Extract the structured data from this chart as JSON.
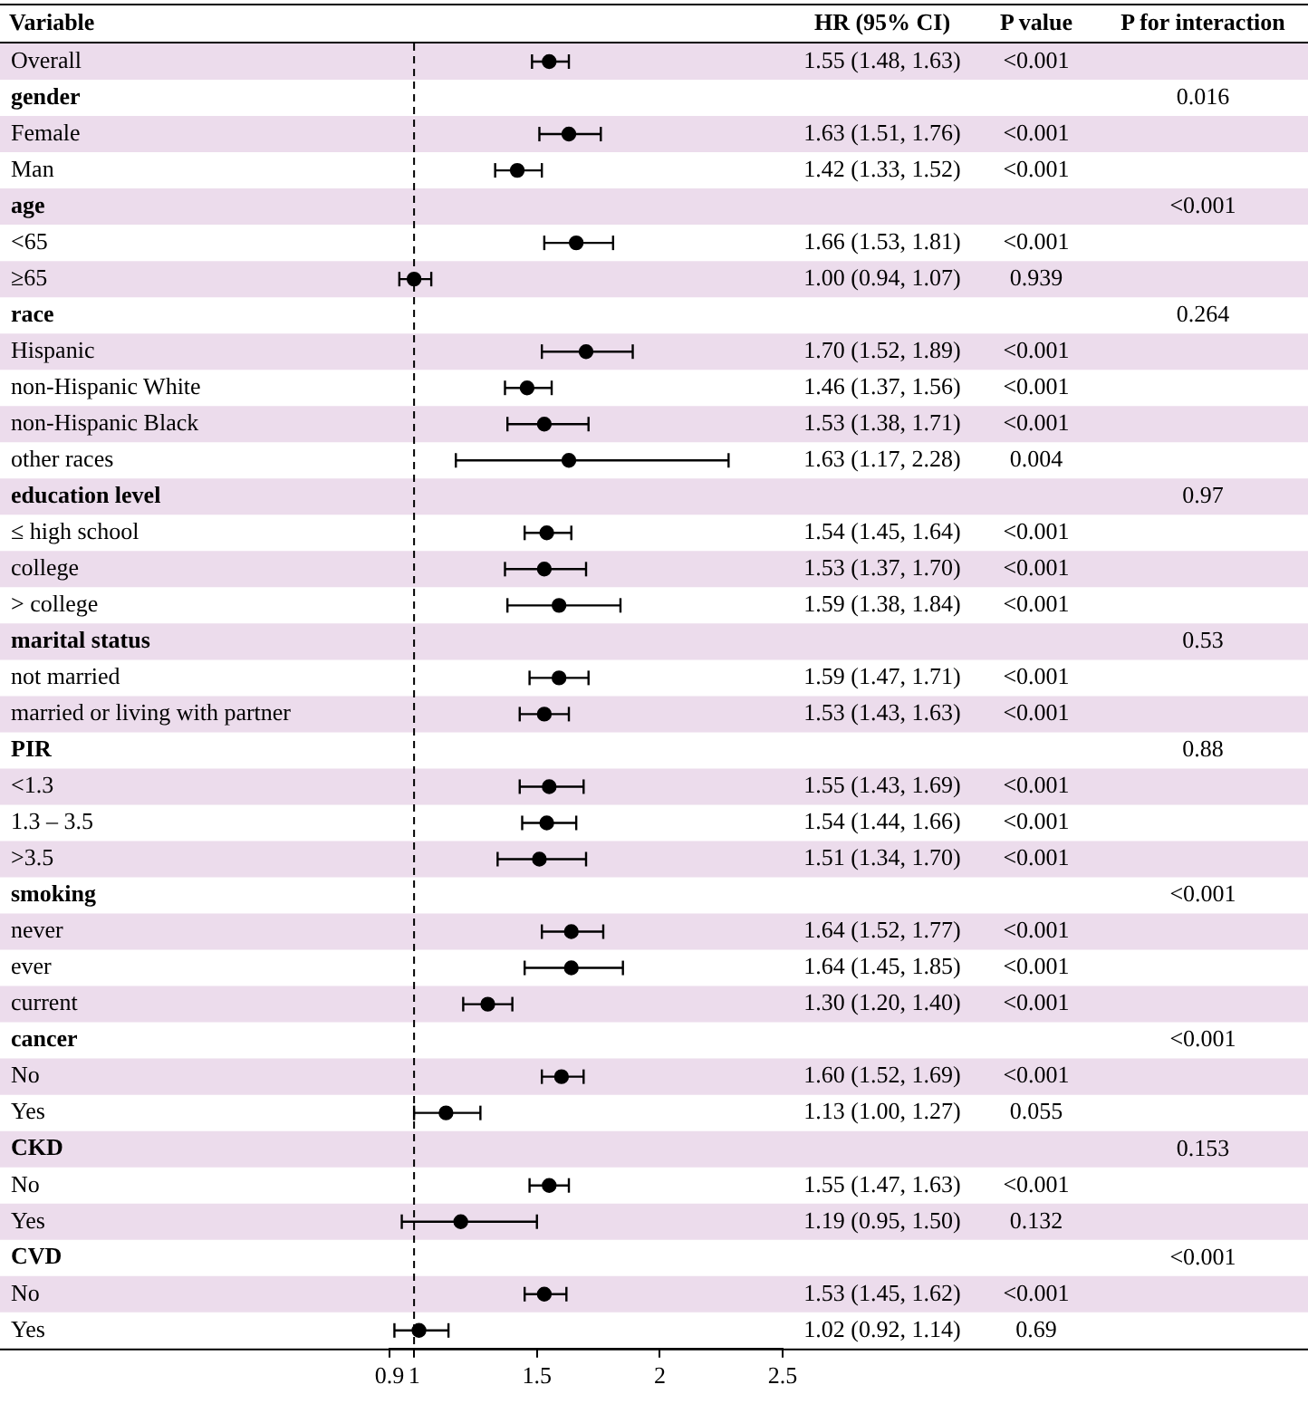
{
  "chart_data": {
    "type": "scatter",
    "ylabel": "Variable",
    "categories": [
      "Overall",
      "gender",
      "Female",
      "Man",
      "age",
      "<65",
      "≥65",
      "race",
      "Hispanic",
      "non-Hispanic White",
      "non-Hispanic Black",
      "other races",
      "education level",
      "≤ high school",
      "college",
      "> college",
      "marital status",
      "not married",
      "married or living with partner",
      "PIR",
      "<1.3",
      "1.3 – 3.5",
      ">3.5",
      "smoking",
      "never",
      "ever",
      "current",
      "cancer",
      "No",
      "Yes",
      "CKD",
      "No",
      "Yes",
      "CVD",
      "No",
      "Yes"
    ],
    "series": [
      {
        "color": "#000000",
        "values": [
          1.55,
          null,
          1.63,
          1.42,
          null,
          1.66,
          1.0,
          null,
          1.7,
          1.46,
          1.53,
          1.63,
          null,
          1.54,
          1.53,
          1.59,
          null,
          1.59,
          1.53,
          null,
          1.55,
          1.54,
          1.51,
          null,
          1.64,
          1.64,
          1.3,
          null,
          1.6,
          1.13,
          null,
          1.55,
          1.19,
          null,
          1.53,
          1.02
        ],
        "errors": [
          [
            1.48,
            1.63
          ],
          null,
          [
            1.51,
            1.76
          ],
          [
            1.33,
            1.52
          ],
          null,
          [
            1.53,
            1.81
          ],
          [
            0.94,
            1.07
          ],
          null,
          [
            1.52,
            1.89
          ],
          [
            1.37,
            1.56
          ],
          [
            1.38,
            1.71
          ],
          [
            1.17,
            2.28
          ],
          null,
          [
            1.45,
            1.64
          ],
          [
            1.37,
            1.7
          ],
          [
            1.38,
            1.84
          ],
          null,
          [
            1.47,
            1.71
          ],
          [
            1.43,
            1.63
          ],
          null,
          [
            1.43,
            1.69
          ],
          [
            1.44,
            1.66
          ],
          [
            1.34,
            1.7
          ],
          null,
          [
            1.52,
            1.77
          ],
          [
            1.45,
            1.85
          ],
          [
            1.2,
            1.4
          ],
          null,
          [
            1.52,
            1.69
          ],
          [
            1.0,
            1.27
          ],
          null,
          [
            1.47,
            1.63
          ],
          [
            0.95,
            1.5
          ],
          null,
          [
            1.45,
            1.62
          ],
          [
            0.92,
            1.14
          ]
        ],
        "value_labels": [
          "1.55 (1.48, 1.63)",
          null,
          "1.63 (1.51, 1.76)",
          "1.42 (1.33, 1.52)",
          null,
          "1.66 (1.53, 1.81)",
          "1.00 (0.94, 1.07)",
          null,
          "1.70 (1.52, 1.89)",
          "1.46 (1.37, 1.56)",
          "1.53 (1.38, 1.71)",
          "1.63 (1.17, 2.28)",
          null,
          "1.54 (1.45, 1.64)",
          "1.53 (1.37, 1.70)",
          "1.59 (1.38, 1.84)",
          null,
          "1.59 (1.47, 1.71)",
          "1.53 (1.43, 1.63)",
          null,
          "1.55 (1.43, 1.69)",
          "1.54 (1.44, 1.66)",
          "1.51 (1.34, 1.70)",
          null,
          "1.64 (1.52, 1.77)",
          "1.64 (1.45, 1.85)",
          "1.30 (1.20, 1.40)",
          null,
          "1.60 (1.52, 1.69)",
          "1.13 (1.00, 1.27)",
          null,
          "1.55 (1.47, 1.63)",
          "1.19 (0.95, 1.50)",
          null,
          "1.53 (1.45, 1.62)",
          "1.02 (0.92, 1.14)"
        ]
      }
    ],
    "annotations": [
      "HR (95% CI)",
      "P value",
      "P for interaction",
      "<0.001",
      "0.016",
      "<0.001",
      "<0.001",
      "<0.001",
      "<0.001",
      "0.939",
      "0.264",
      "<0.001",
      "<0.001",
      "<0.001",
      "0.004",
      "0.97",
      "<0.001",
      "<0.001",
      "<0.001",
      "0.53",
      "<0.001",
      "<0.001",
      "0.88",
      "<0.001",
      "<0.001",
      "<0.001",
      "<0.001",
      "<0.001",
      "<0.001",
      "<0.001",
      "<0.001",
      "<0.001",
      "0.055",
      "0.153",
      "<0.001",
      "0.132",
      "<0.001",
      "<0.001",
      "0.69"
    ],
    "xlim": [
      0.9,
      2.5
    ],
    "xticks": [
      0.9,
      1,
      1.5,
      2,
      2.5
    ],
    "ref_lines": [
      {
        "axis": "x",
        "value": 1,
        "line_style": "dashed"
      }
    ],
    "orientation": "horizontal",
    "marker": "circle",
    "grid": false,
    "legend": false
  }
}
